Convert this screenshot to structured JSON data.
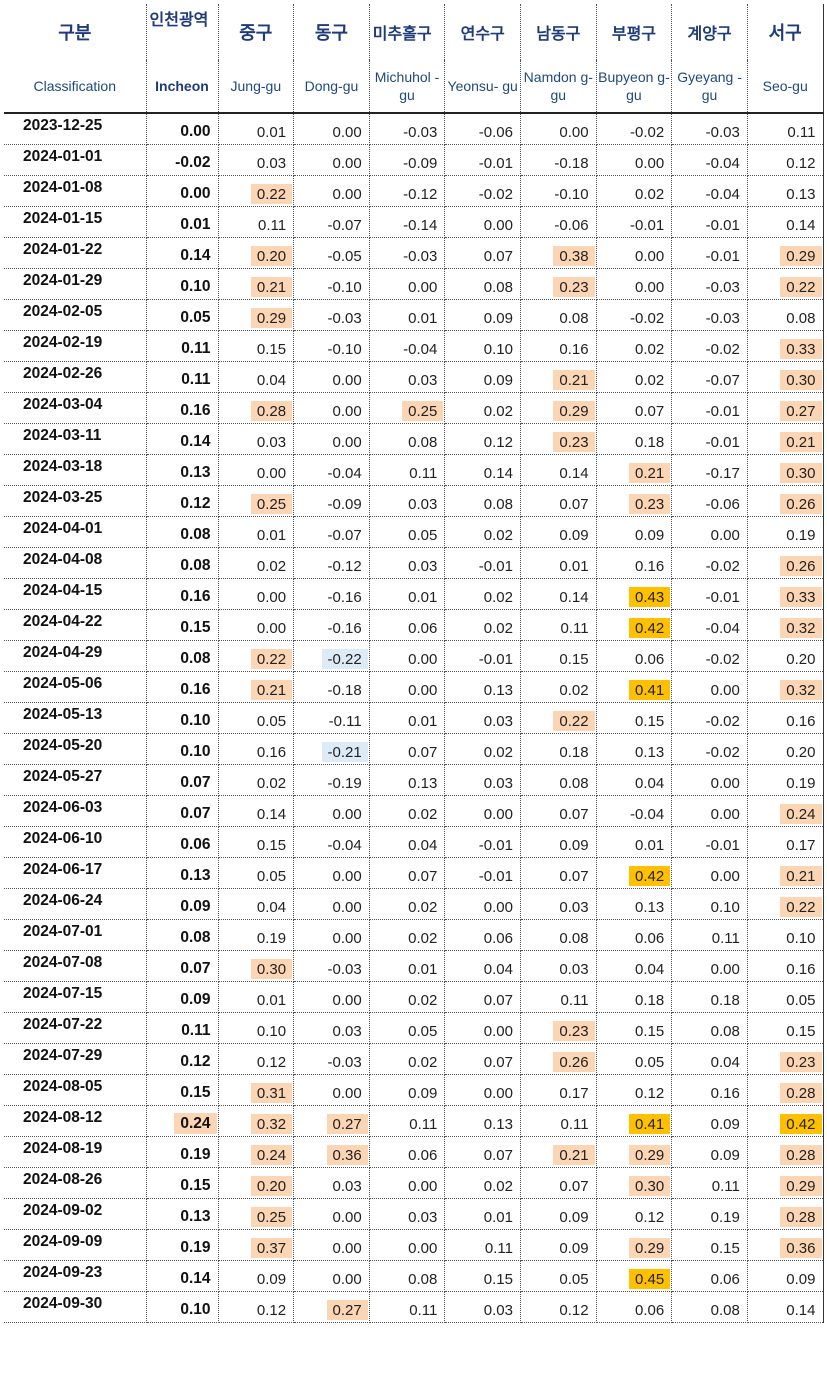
{
  "header": {
    "korean": [
      "구분",
      "인천광역",
      "중구",
      "동구",
      "미추홀구",
      "연수구",
      "남동구",
      "부평구",
      "계양구",
      "서구"
    ],
    "english": [
      "Classification",
      "Incheon",
      "Jung-gu",
      "Dong-gu",
      "Michuhol -gu",
      "Yeonsu- gu",
      "Namdon g-gu",
      "Bupyeon g-gu",
      "Gyeyang -gu",
      "Seo-gu"
    ]
  },
  "colors": {
    "orange_highlight": "#fcd5b4",
    "yellow_highlight": "#ffc000",
    "blue_highlight": "#ddebf7",
    "header_text": "#1f3c7a"
  },
  "rows": [
    {
      "date": "2023-12-25",
      "v": [
        "0.00",
        "0.01",
        "0.00",
        "-0.03",
        "-0.06",
        "0.00",
        "-0.02",
        "-0.03",
        "0.11"
      ],
      "hl": [
        "",
        "",
        "",
        "",
        "",
        "",
        "",
        "",
        ""
      ]
    },
    {
      "date": "2024-01-01",
      "v": [
        "-0.02",
        "0.03",
        "0.00",
        "-0.09",
        "-0.01",
        "-0.18",
        "0.00",
        "-0.04",
        "0.12"
      ],
      "hl": [
        "",
        "",
        "",
        "",
        "",
        "",
        "",
        "",
        ""
      ]
    },
    {
      "date": "2024-01-08",
      "v": [
        "0.00",
        "0.22",
        "0.00",
        "-0.12",
        "-0.02",
        "-0.10",
        "0.02",
        "-0.04",
        "0.13"
      ],
      "hl": [
        "",
        "o",
        "",
        "",
        "",
        "",
        "",
        "",
        ""
      ]
    },
    {
      "date": "2024-01-15",
      "v": [
        "0.01",
        "0.11",
        "-0.07",
        "-0.14",
        "0.00",
        "-0.06",
        "-0.01",
        "-0.01",
        "0.14"
      ],
      "hl": [
        "",
        "",
        "",
        "",
        "",
        "",
        "",
        "",
        ""
      ]
    },
    {
      "date": "2024-01-22",
      "v": [
        "0.14",
        "0.20",
        "-0.05",
        "-0.03",
        "0.07",
        "0.38",
        "0.00",
        "-0.01",
        "0.29"
      ],
      "hl": [
        "",
        "o",
        "",
        "",
        "",
        "o",
        "",
        "",
        "o"
      ]
    },
    {
      "date": "2024-01-29",
      "v": [
        "0.10",
        "0.21",
        "-0.10",
        "0.00",
        "0.08",
        "0.23",
        "0.00",
        "-0.03",
        "0.22"
      ],
      "hl": [
        "",
        "o",
        "",
        "",
        "",
        "o",
        "",
        "",
        "o"
      ]
    },
    {
      "date": "2024-02-05",
      "v": [
        "0.05",
        "0.29",
        "-0.03",
        "0.01",
        "0.09",
        "0.08",
        "-0.02",
        "-0.03",
        "0.08"
      ],
      "hl": [
        "",
        "o",
        "",
        "",
        "",
        "",
        "",
        "",
        ""
      ]
    },
    {
      "date": "2024-02-19",
      "v": [
        "0.11",
        "0.15",
        "-0.10",
        "-0.04",
        "0.10",
        "0.16",
        "0.02",
        "-0.02",
        "0.33"
      ],
      "hl": [
        "",
        "",
        "",
        "",
        "",
        "",
        "",
        "",
        "o"
      ]
    },
    {
      "date": "2024-02-26",
      "v": [
        "0.11",
        "0.04",
        "0.00",
        "0.03",
        "0.09",
        "0.21",
        "0.02",
        "-0.07",
        "0.30"
      ],
      "hl": [
        "",
        "",
        "",
        "",
        "",
        "o",
        "",
        "",
        "o"
      ]
    },
    {
      "date": "2024-03-04",
      "v": [
        "0.16",
        "0.28",
        "0.00",
        "0.25",
        "0.02",
        "0.29",
        "0.07",
        "-0.01",
        "0.27"
      ],
      "hl": [
        "",
        "o",
        "",
        "o",
        "",
        "o",
        "",
        "",
        "o"
      ]
    },
    {
      "date": "2024-03-11",
      "v": [
        "0.14",
        "0.03",
        "0.00",
        "0.08",
        "0.12",
        "0.23",
        "0.18",
        "-0.01",
        "0.21"
      ],
      "hl": [
        "",
        "",
        "",
        "",
        "",
        "o",
        "",
        "",
        "o"
      ]
    },
    {
      "date": "2024-03-18",
      "v": [
        "0.13",
        "0.00",
        "-0.04",
        "0.11",
        "0.14",
        "0.14",
        "0.21",
        "-0.17",
        "0.30"
      ],
      "hl": [
        "",
        "",
        "",
        "",
        "",
        "",
        "o",
        "",
        "o"
      ]
    },
    {
      "date": "2024-03-25",
      "v": [
        "0.12",
        "0.25",
        "-0.09",
        "0.03",
        "0.08",
        "0.07",
        "0.23",
        "-0.06",
        "0.26"
      ],
      "hl": [
        "",
        "o",
        "",
        "",
        "",
        "",
        "o",
        "",
        "o"
      ]
    },
    {
      "date": "2024-04-01",
      "v": [
        "0.08",
        "0.01",
        "-0.07",
        "0.05",
        "0.02",
        "0.09",
        "0.09",
        "0.00",
        "0.19"
      ],
      "hl": [
        "",
        "",
        "",
        "",
        "",
        "",
        "",
        "",
        ""
      ]
    },
    {
      "date": "2024-04-08",
      "v": [
        "0.08",
        "0.02",
        "-0.12",
        "0.03",
        "-0.01",
        "0.01",
        "0.16",
        "-0.02",
        "0.26"
      ],
      "hl": [
        "",
        "",
        "",
        "",
        "",
        "",
        "",
        "",
        "o"
      ]
    },
    {
      "date": "2024-04-15",
      "v": [
        "0.16",
        "0.00",
        "-0.16",
        "0.01",
        "0.02",
        "0.14",
        "0.43",
        "-0.01",
        "0.33"
      ],
      "hl": [
        "",
        "",
        "",
        "",
        "",
        "",
        "y",
        "",
        "o"
      ]
    },
    {
      "date": "2024-04-22",
      "v": [
        "0.15",
        "0.00",
        "-0.16",
        "0.06",
        "0.02",
        "0.11",
        "0.42",
        "-0.04",
        "0.32"
      ],
      "hl": [
        "",
        "",
        "",
        "",
        "",
        "",
        "y",
        "",
        "o"
      ]
    },
    {
      "date": "2024-04-29",
      "v": [
        "0.08",
        "0.22",
        "-0.22",
        "0.00",
        "-0.01",
        "0.15",
        "0.06",
        "-0.02",
        "0.20"
      ],
      "hl": [
        "",
        "o",
        "b",
        "",
        "",
        "",
        "",
        "",
        ""
      ]
    },
    {
      "date": "2024-05-06",
      "v": [
        "0.16",
        "0.21",
        "-0.18",
        "0.00",
        "0.13",
        "0.02",
        "0.41",
        "0.00",
        "0.32"
      ],
      "hl": [
        "",
        "o",
        "",
        "",
        "",
        "",
        "y",
        "",
        "o"
      ]
    },
    {
      "date": "2024-05-13",
      "v": [
        "0.10",
        "0.05",
        "-0.11",
        "0.01",
        "0.03",
        "0.22",
        "0.15",
        "-0.02",
        "0.16"
      ],
      "hl": [
        "",
        "",
        "",
        "",
        "",
        "o",
        "",
        "",
        ""
      ]
    },
    {
      "date": "2024-05-20",
      "v": [
        "0.10",
        "0.16",
        "-0.21",
        "0.07",
        "0.02",
        "0.18",
        "0.13",
        "-0.02",
        "0.20"
      ],
      "hl": [
        "",
        "",
        "b",
        "",
        "",
        "",
        "",
        "",
        ""
      ]
    },
    {
      "date": "2024-05-27",
      "v": [
        "0.07",
        "0.02",
        "-0.19",
        "0.13",
        "0.03",
        "0.08",
        "0.04",
        "0.00",
        "0.19"
      ],
      "hl": [
        "",
        "",
        "",
        "",
        "",
        "",
        "",
        "",
        ""
      ]
    },
    {
      "date": "2024-06-03",
      "v": [
        "0.07",
        "0.14",
        "0.00",
        "0.02",
        "0.00",
        "0.07",
        "-0.04",
        "0.00",
        "0.24"
      ],
      "hl": [
        "",
        "",
        "",
        "",
        "",
        "",
        "",
        "",
        "o"
      ]
    },
    {
      "date": "2024-06-10",
      "v": [
        "0.06",
        "0.15",
        "-0.04",
        "0.04",
        "-0.01",
        "0.09",
        "0.01",
        "-0.01",
        "0.17"
      ],
      "hl": [
        "",
        "",
        "",
        "",
        "",
        "",
        "",
        "",
        ""
      ]
    },
    {
      "date": "2024-06-17",
      "v": [
        "0.13",
        "0.05",
        "0.00",
        "0.07",
        "-0.01",
        "0.07",
        "0.42",
        "0.00",
        "0.21"
      ],
      "hl": [
        "",
        "",
        "",
        "",
        "",
        "",
        "y",
        "",
        "o"
      ]
    },
    {
      "date": "2024-06-24",
      "v": [
        "0.09",
        "0.04",
        "0.00",
        "0.02",
        "0.00",
        "0.03",
        "0.13",
        "0.10",
        "0.22"
      ],
      "hl": [
        "",
        "",
        "",
        "",
        "",
        "",
        "",
        "",
        "o"
      ]
    },
    {
      "date": "2024-07-01",
      "v": [
        "0.08",
        "0.19",
        "0.00",
        "0.02",
        "0.06",
        "0.08",
        "0.06",
        "0.11",
        "0.10"
      ],
      "hl": [
        "",
        "",
        "",
        "",
        "",
        "",
        "",
        "",
        ""
      ]
    },
    {
      "date": "2024-07-08",
      "v": [
        "0.07",
        "0.30",
        "-0.03",
        "0.01",
        "0.04",
        "0.03",
        "0.04",
        "0.00",
        "0.16"
      ],
      "hl": [
        "",
        "o",
        "",
        "",
        "",
        "",
        "",
        "",
        ""
      ]
    },
    {
      "date": "2024-07-15",
      "v": [
        "0.09",
        "0.01",
        "0.00",
        "0.02",
        "0.07",
        "0.11",
        "0.18",
        "0.18",
        "0.05"
      ],
      "hl": [
        "",
        "",
        "",
        "",
        "",
        "",
        "",
        "",
        ""
      ]
    },
    {
      "date": "2024-07-22",
      "v": [
        "0.11",
        "0.10",
        "0.03",
        "0.05",
        "0.00",
        "0.23",
        "0.15",
        "0.08",
        "0.15"
      ],
      "hl": [
        "",
        "",
        "",
        "",
        "",
        "o",
        "",
        "",
        ""
      ]
    },
    {
      "date": "2024-07-29",
      "v": [
        "0.12",
        "0.12",
        "-0.03",
        "0.02",
        "0.07",
        "0.26",
        "0.05",
        "0.04",
        "0.23"
      ],
      "hl": [
        "",
        "",
        "",
        "",
        "",
        "o",
        "",
        "",
        "o"
      ]
    },
    {
      "date": "2024-08-05",
      "v": [
        "0.15",
        "0.31",
        "0.00",
        "0.09",
        "0.00",
        "0.17",
        "0.12",
        "0.16",
        "0.28"
      ],
      "hl": [
        "",
        "o",
        "",
        "",
        "",
        "",
        "",
        "",
        "o"
      ]
    },
    {
      "date": "2024-08-12",
      "v": [
        "0.24",
        "0.32",
        "0.27",
        "0.11",
        "0.13",
        "0.11",
        "0.41",
        "0.09",
        "0.42"
      ],
      "hl": [
        "o",
        "o",
        "o",
        "",
        "",
        "",
        "y",
        "",
        "y"
      ]
    },
    {
      "date": "2024-08-19",
      "v": [
        "0.19",
        "0.24",
        "0.36",
        "0.06",
        "0.07",
        "0.21",
        "0.29",
        "0.09",
        "0.28"
      ],
      "hl": [
        "",
        "o",
        "o",
        "",
        "",
        "o",
        "o",
        "",
        "o"
      ]
    },
    {
      "date": "2024-08-26",
      "v": [
        "0.15",
        "0.20",
        "0.03",
        "0.00",
        "0.02",
        "0.07",
        "0.30",
        "0.11",
        "0.29"
      ],
      "hl": [
        "",
        "o",
        "",
        "",
        "",
        "",
        "o",
        "",
        "o"
      ]
    },
    {
      "date": "2024-09-02",
      "v": [
        "0.13",
        "0.25",
        "0.00",
        "0.03",
        "0.01",
        "0.09",
        "0.12",
        "0.19",
        "0.28"
      ],
      "hl": [
        "",
        "o",
        "",
        "",
        "",
        "",
        "",
        "",
        "o"
      ]
    },
    {
      "date": "2024-09-09",
      "v": [
        "0.19",
        "0.37",
        "0.00",
        "0.00",
        "0.11",
        "0.09",
        "0.29",
        "0.15",
        "0.36"
      ],
      "hl": [
        "",
        "o",
        "",
        "",
        "",
        "",
        "o",
        "",
        "o"
      ]
    },
    {
      "date": "2024-09-23",
      "v": [
        "0.14",
        "0.09",
        "0.00",
        "0.08",
        "0.15",
        "0.05",
        "0.45",
        "0.06",
        "0.09"
      ],
      "hl": [
        "",
        "",
        "",
        "",
        "",
        "",
        "y",
        "",
        ""
      ]
    },
    {
      "date": "2024-09-30",
      "v": [
        "0.10",
        "0.12",
        "0.27",
        "0.11",
        "0.03",
        "0.12",
        "0.06",
        "0.08",
        "0.14"
      ],
      "hl": [
        "",
        "",
        "o",
        "",
        "",
        "",
        "",
        "",
        ""
      ]
    }
  ]
}
